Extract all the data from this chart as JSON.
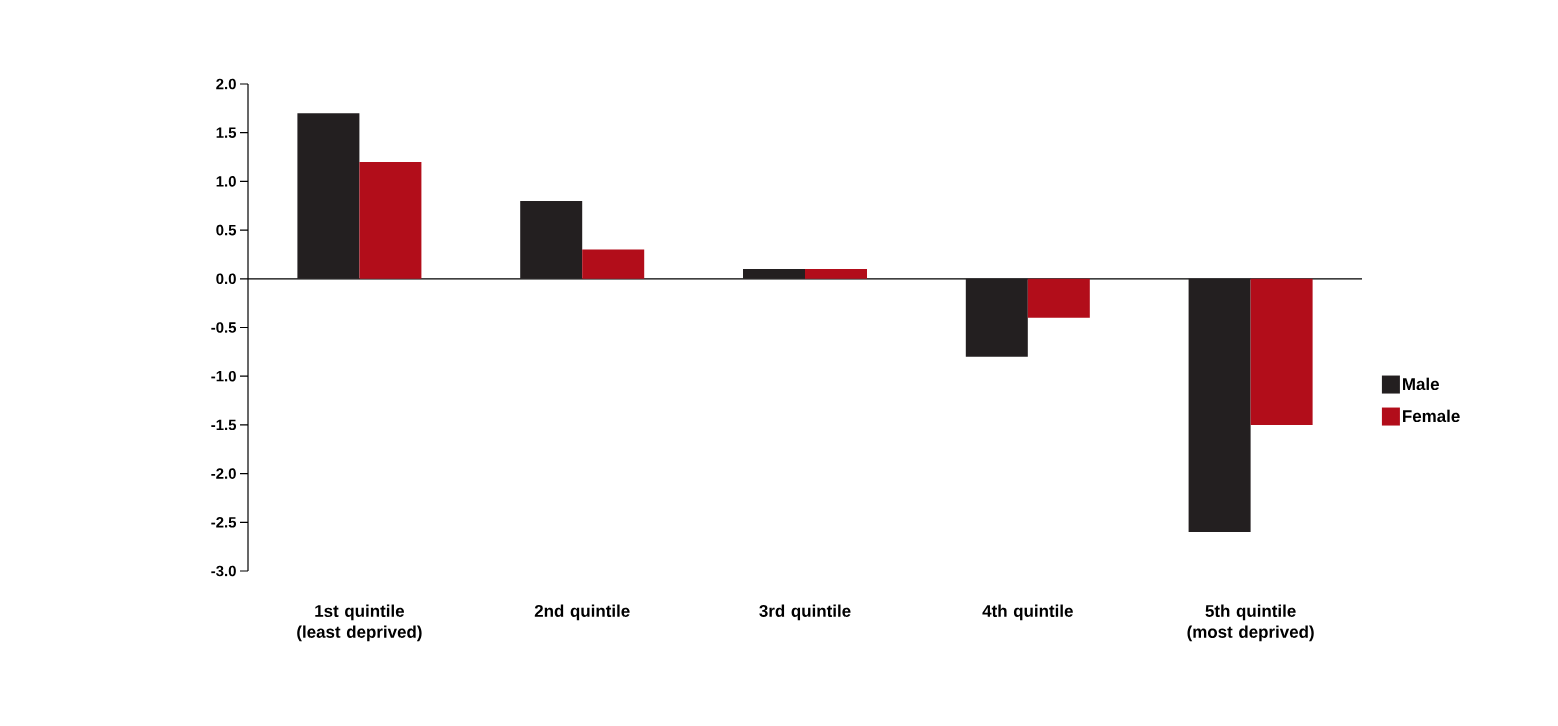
{
  "chart_data": {
    "type": "bar",
    "categories": [
      "1st quintile (least deprived)",
      "2nd quintile",
      "3rd quintile",
      "4th quintile",
      "5th quintile (most deprived)"
    ],
    "series": [
      {
        "name": "Male",
        "color": "#231f20",
        "values": [
          1.7,
          0.8,
          0.1,
          -0.8,
          -2.6
        ]
      },
      {
        "name": "Female",
        "color": "#b20d1a",
        "values": [
          1.2,
          0.3,
          0.1,
          -0.4,
          -1.5
        ]
      }
    ],
    "ylim": [
      -3.0,
      2.0
    ],
    "yticks": [
      {
        "value": -3.0,
        "label": "-3.0"
      },
      {
        "value": -2.5,
        "label": "-2.5"
      },
      {
        "value": -2.0,
        "label": "-2.0"
      },
      {
        "value": -1.5,
        "label": "-1.5"
      },
      {
        "value": -1.0,
        "label": "-1.0"
      },
      {
        "value": -0.5,
        "label": "-0.5"
      },
      {
        "value": 0.0,
        "label": "0.0"
      },
      {
        "value": 0.5,
        "label": "0.5"
      },
      {
        "value": 1.0,
        "label": "1.0"
      },
      {
        "value": 1.5,
        "label": "1.5"
      },
      {
        "value": 2.0,
        "label": "2.0"
      }
    ],
    "legend": "right"
  }
}
